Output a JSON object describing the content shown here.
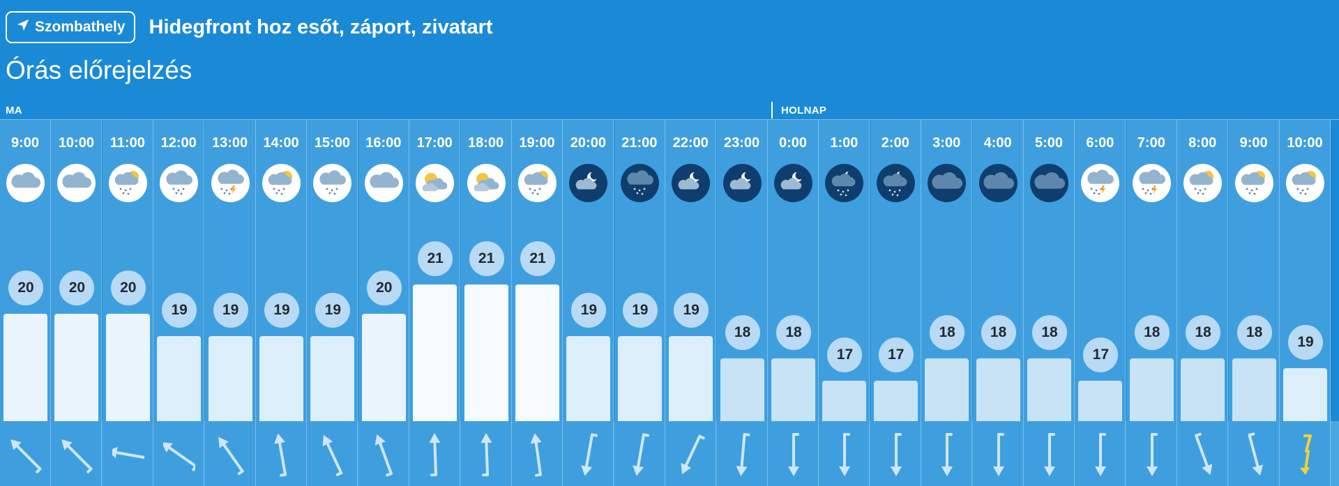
{
  "header": {
    "location_label": "Szombathely",
    "headline": "Hidegfront hoz esőt, záport, zivatart",
    "section_title": "Órás előrejelzés",
    "day_today": "MA",
    "day_tomorrow": "HOLNAP"
  },
  "colors": {
    "background": "#1a8ad6",
    "column": "#3f9fde",
    "bubble": "#b9daf4",
    "night_icon": "#0f3e6e",
    "thunder_arrow": "#f2d03c"
  },
  "hours": [
    {
      "time": "9:00",
      "temp": 20,
      "icon": "cloudy-day-icon",
      "wind_deg": 135
    },
    {
      "time": "10:00",
      "temp": 20,
      "icon": "cloudy-day-icon",
      "wind_deg": 135
    },
    {
      "time": "11:00",
      "temp": 20,
      "icon": "sun-cloud-rain-icon",
      "wind_deg": 100
    },
    {
      "time": "12:00",
      "temp": 19,
      "icon": "cloud-rain-icon",
      "wind_deg": 125
    },
    {
      "time": "13:00",
      "temp": 19,
      "icon": "cloud-thunder-rain-icon",
      "wind_deg": 145
    },
    {
      "time": "14:00",
      "temp": 19,
      "icon": "sun-cloud-rain-icon",
      "wind_deg": 170
    },
    {
      "time": "15:00",
      "temp": 19,
      "icon": "cloud-rain-icon",
      "wind_deg": 155
    },
    {
      "time": "16:00",
      "temp": 20,
      "icon": "cloudy-day-icon",
      "wind_deg": 160
    },
    {
      "time": "17:00",
      "temp": 21,
      "icon": "partly-sunny-icon",
      "wind_deg": 178
    },
    {
      "time": "18:00",
      "temp": 21,
      "icon": "partly-sunny-icon",
      "wind_deg": 178
    },
    {
      "time": "19:00",
      "temp": 21,
      "icon": "sun-cloud-rain-icon",
      "wind_deg": 172
    },
    {
      "time": "20:00",
      "temp": 19,
      "icon": "moon-cloud-icon",
      "wind_deg": 10
    },
    {
      "time": "21:00",
      "temp": 19,
      "icon": "night-rain-icon",
      "wind_deg": 10
    },
    {
      "time": "22:00",
      "temp": 19,
      "icon": "moon-cloud-icon",
      "wind_deg": 25
    },
    {
      "time": "23:00",
      "temp": 18,
      "icon": "moon-cloud-icon",
      "wind_deg": 5
    },
    {
      "time": "0:00",
      "temp": 18,
      "icon": "moon-cloud-icon",
      "wind_deg": 0
    },
    {
      "time": "1:00",
      "temp": 17,
      "icon": "moon-cloud-rain-icon",
      "wind_deg": 0
    },
    {
      "time": "2:00",
      "temp": 17,
      "icon": "moon-cloud-rain-icon",
      "wind_deg": 0
    },
    {
      "time": "3:00",
      "temp": 18,
      "icon": "night-cloudy-icon",
      "wind_deg": 0
    },
    {
      "time": "4:00",
      "temp": 18,
      "icon": "night-cloudy-icon",
      "wind_deg": 0
    },
    {
      "time": "5:00",
      "temp": 18,
      "icon": "night-cloudy-icon",
      "wind_deg": 0
    },
    {
      "time": "6:00",
      "temp": 17,
      "icon": "cloud-thunder-rain-icon",
      "wind_deg": 0
    },
    {
      "time": "7:00",
      "temp": 18,
      "icon": "cloud-thunder-rain-icon",
      "wind_deg": 0
    },
    {
      "time": "8:00",
      "temp": 18,
      "icon": "sun-cloud-rain-icon",
      "wind_deg": 340
    },
    {
      "time": "9:00",
      "temp": 18,
      "icon": "sun-cloud-rain-icon",
      "wind_deg": 345
    },
    {
      "time": "10:00",
      "temp": 19,
      "icon": "sun-cloud-rain-icon",
      "wind_deg": 0,
      "wind_thunder": true
    }
  ]
}
